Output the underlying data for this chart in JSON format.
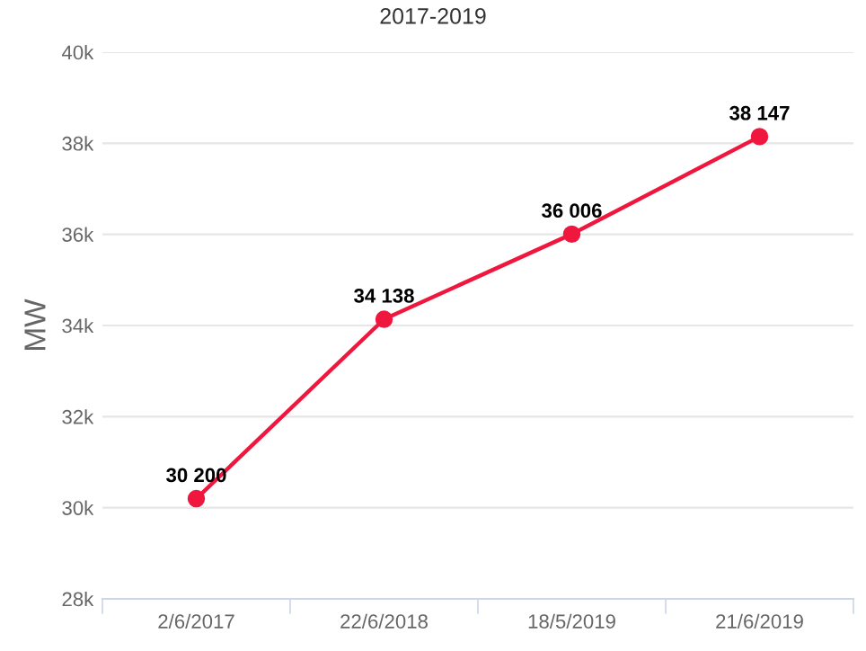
{
  "chart_data": {
    "type": "line",
    "title": "2017-2019",
    "ylabel": "MW",
    "categories": [
      "2/6/2017",
      "22/6/2018",
      "18/5/2019",
      "21/6/2019"
    ],
    "series": [
      {
        "color": "#f0173f",
        "values": [
          30200,
          34138,
          36006,
          38147
        ],
        "value_labels": [
          "30 200",
          "34 138",
          "36 006",
          "38 147"
        ]
      }
    ],
    "ylim": [
      28000,
      40000
    ],
    "yticks": [
      {
        "value": 28000,
        "label": "28k"
      },
      {
        "value": 30000,
        "label": "30k"
      },
      {
        "value": 32000,
        "label": "32k"
      },
      {
        "value": 34000,
        "label": "34k"
      },
      {
        "value": 36000,
        "label": "36k"
      },
      {
        "value": 38000,
        "label": "38k"
      },
      {
        "value": 40000,
        "label": "40k"
      }
    ],
    "grid": "y",
    "marker": "circle",
    "line_style": "solid",
    "legend": false
  }
}
